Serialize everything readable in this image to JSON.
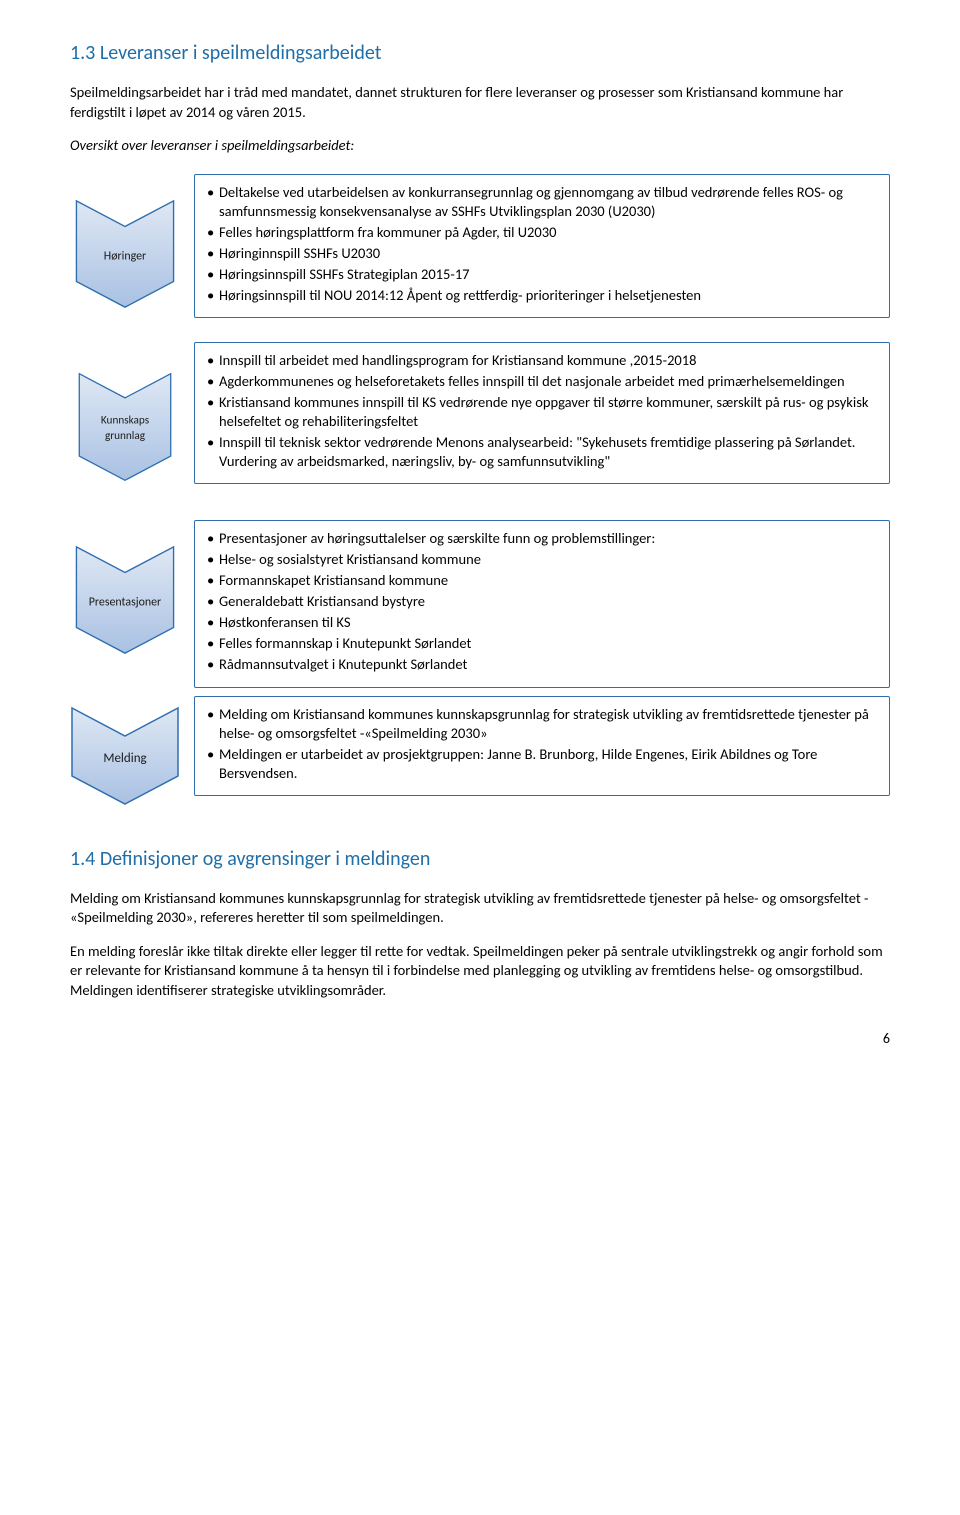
{
  "section1": {
    "heading": "1.3 Leveranser i speilmeldingsarbeidet",
    "intro": "Speilmeldingsarbeidet har i tråd med mandatet, dannet strukturen for flere leveranser og prosesser som Kristiansand kommune har ferdigstilt i løpet av 2014 og våren 2015.",
    "overview": "Oversikt over leveranser i speilmeldingsarbeidet:"
  },
  "chevron_colors": {
    "fill_top": "#dfe8f4",
    "fill_bottom": "#a9c1e3",
    "stroke": "#2e6eaf"
  },
  "rows": [
    {
      "label_line1": "Høringer",
      "label_line2": "",
      "items": [
        "Deltakelse ved utarbeidelsen av konkurransegrunnlag og gjennomgang av tilbud vedrørende felles ROS- og samfunnsmessig konsekvensanalyse av SSHFs Utviklingsplan 2030 (U2030)",
        "Felles høringsplattform fra kommuner på Agder, til U2030",
        "Høringinnspill SSHFs U2030",
        "Høringsinnspill  SSHFs Strategiplan 2015-17",
        "Høringsinnspill til NOU 2014:12 Åpent og rettferdig- prioriteringer i helsetjenesten"
      ]
    },
    {
      "label_line1": "Kunnskaps",
      "label_line2": "grunnlag",
      "items": [
        "Innspill til arbeidet med handlingsprogram for Kristiansand kommune ,2015-2018",
        "Agderkommunenes og helseforetakets felles innspill til det nasjonale arbeidet med primærhelsemeldingen",
        "Kristiansand kommunes innspill til KS vedrørende nye oppgaver til større kommuner, særskilt på rus- og psykisk helsefeltet og rehabiliteringsfeltet",
        "Innspill til teknisk sektor vedrørende Menons analysearbeid: \"Sykehusets fremtidige plassering på Sørlandet. Vurdering av arbeidsmarked, næringsliv, by- og samfunnsutvikling\""
      ]
    },
    {
      "label_line1": "Presentasjoner",
      "label_line2": "",
      "items": [
        "Presentasjoner av høringsuttalelser og særskilte funn og problemstillinger:",
        "Helse- og sosialstyret Kristiansand kommune",
        "Formannskapet Kristiansand kommune",
        "Generaldebatt Kristiansand bystyre",
        "Høstkonferansen til KS",
        "Felles formannskap i Knutepunkt Sørlandet",
        "Rådmannsutvalget i  Knutepunkt Sørlandet"
      ]
    },
    {
      "label_line1": "Melding",
      "label_line2": "",
      "items": [
        "Melding om Kristiansand kommunes kunnskapsgrunnlag for strategisk utvikling av fremtidsrettede tjenester på helse- og omsorgsfeltet -«Speilmelding 2030»",
        "Meldingen er utarbeidet av prosjektgruppen: Janne B. Brunborg, Hilde Engenes, Eirik Abildnes og Tore Bersvendsen."
      ]
    }
  ],
  "section2": {
    "heading": "1.4 Definisjoner og avgrensinger i meldingen",
    "para1": "Melding om Kristiansand kommunes kunnskapsgrunnlag for strategisk utvikling av fremtidsrettede tjenester på helse- og omsorgsfeltet - «Speilmelding 2030», refereres heretter til som speilmeldingen.",
    "para2": "En melding foreslår ikke tiltak direkte eller legger til rette for vedtak. Speilmeldingen peker på sentrale utviklingstrekk og angir forhold som er relevante for Kristiansand kommune å ta hensyn til i forbindelse med planlegging og utvikling av fremtidens helse- og omsorgstilbud. Meldingen identifiserer strategiske utviklingsområder."
  },
  "page_number": "6"
}
